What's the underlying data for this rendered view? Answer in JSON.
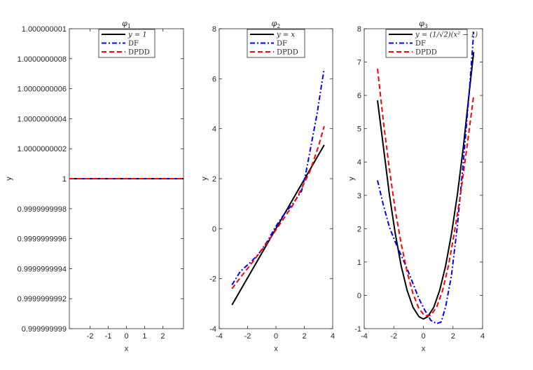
{
  "chart_data": [
    {
      "type": "line",
      "title": "φ",
      "title_sub": "1",
      "xlabel": "x",
      "ylabel": "y",
      "xlim": [
        -3.1416,
        3.1416
      ],
      "ylim": [
        0.999999999,
        1.000000001
      ],
      "xticks": [
        -2,
        -1,
        0,
        1,
        2
      ],
      "xtick_labels": [
        "-2",
        "-1",
        "0",
        "1",
        "2"
      ],
      "yticks": [
        0.999999999,
        0.9999999992,
        0.9999999994,
        0.9999999996,
        0.9999999998,
        1,
        1.0000000002,
        1.0000000004,
        1.0000000006,
        1.0000000008,
        1.000000001
      ],
      "ytick_labels": [
        "0.999999999",
        "0.9999999992",
        "0.9999999994",
        "0.9999999996",
        "0.9999999998",
        "1",
        "1.0000000002",
        "1.0000000004",
        "1.0000000006",
        "1.0000000008",
        "1.000000001"
      ],
      "legend_position": "top",
      "grid": false,
      "series": [
        {
          "name": "y = 1",
          "color": "#000000",
          "style": "solid",
          "x": [
            -3.1416,
            3.1416
          ],
          "y": [
            1,
            1
          ]
        },
        {
          "name": "DF",
          "color": "#0000ff",
          "style": "dashdot",
          "x": [
            -3.1416,
            3.1416
          ],
          "y": [
            1,
            1
          ]
        },
        {
          "name": "DPDD",
          "color": "#ff0000",
          "style": "dashed",
          "x": [
            -3.1416,
            3.1416
          ],
          "y": [
            1,
            1
          ]
        }
      ]
    },
    {
      "type": "line",
      "title": "φ",
      "title_sub": "2",
      "xlabel": "x",
      "ylabel": "y",
      "xlim": [
        -4,
        4
      ],
      "ylim": [
        -4,
        8
      ],
      "xticks": [
        -4,
        -2,
        0,
        2,
        4
      ],
      "xtick_labels": [
        "-4",
        "-2",
        "0",
        "2",
        "4"
      ],
      "yticks": [
        -4,
        -2,
        0,
        2,
        4,
        6,
        8
      ],
      "ytick_labels": [
        "-4",
        "-2",
        "0",
        "2",
        "4",
        "6",
        "8"
      ],
      "legend_position": "top",
      "grid": false,
      "series": [
        {
          "name": "y = x",
          "color": "#000000",
          "style": "solid",
          "x": [
            -3.1,
            3.4
          ],
          "y": [
            -3.05,
            3.35
          ]
        },
        {
          "name": "DF",
          "color": "#0000ff",
          "style": "dashdot",
          "x": [
            -3.1,
            -2.5,
            -1.8,
            -1.2,
            -0.6,
            0,
            0.6,
            1.2,
            1.8,
            2.1,
            2.5,
            2.9,
            3.2,
            3.4
          ],
          "y": [
            -2.25,
            -1.7,
            -1.35,
            -1.0,
            -0.5,
            0.1,
            0.6,
            1.0,
            1.5,
            2.2,
            3.4,
            4.6,
            5.7,
            6.4
          ]
        },
        {
          "name": "DPDD",
          "color": "#ff0000",
          "style": "dashed",
          "x": [
            -3.1,
            -2.5,
            -1.8,
            -1.2,
            -0.6,
            0,
            0.6,
            1.2,
            1.8,
            2.4,
            3.0,
            3.4
          ],
          "y": [
            -2.4,
            -1.95,
            -1.45,
            -1.0,
            -0.55,
            -0.05,
            0.45,
            0.95,
            1.6,
            2.3,
            3.3,
            4.1
          ]
        }
      ]
    },
    {
      "type": "line",
      "title": "φ",
      "title_sub": "3",
      "xlabel": "x",
      "ylabel": "y",
      "xlim": [
        -4,
        4
      ],
      "ylim": [
        -1,
        8
      ],
      "xticks": [
        -4,
        -2,
        0,
        2,
        4
      ],
      "xtick_labels": [
        "-4",
        "-2",
        "0",
        "2",
        "4"
      ],
      "yticks": [
        -1,
        0,
        1,
        2,
        3,
        4,
        5,
        6,
        7,
        8
      ],
      "ytick_labels": [
        "-1",
        "0",
        "1",
        "2",
        "3",
        "4",
        "5",
        "6",
        "7",
        "8"
      ],
      "legend_position": "top",
      "grid": false,
      "series": [
        {
          "name": "y = (1/√2)(x² − 1)",
          "color": "#000000",
          "style": "solid",
          "x": [
            -3.1,
            -2.7,
            -2.3,
            -1.9,
            -1.5,
            -1.1,
            -0.7,
            -0.3,
            0,
            0.3,
            0.7,
            1.1,
            1.5,
            1.9,
            2.3,
            2.7,
            3.1,
            3.4
          ],
          "y": [
            5.85,
            4.45,
            3.03,
            1.85,
            0.88,
            0.15,
            -0.36,
            -0.64,
            -0.71,
            -0.64,
            -0.36,
            0.15,
            0.88,
            1.85,
            3.03,
            4.45,
            6.1,
            7.3
          ]
        },
        {
          "name": "DF",
          "color": "#0000ff",
          "style": "dashdot",
          "x": [
            -3.1,
            -2.7,
            -2.3,
            -1.9,
            -1.5,
            -1.1,
            -0.7,
            -0.3,
            0.1,
            0.5,
            0.9,
            1.2,
            1.5,
            1.9,
            2.3,
            2.7,
            3.1,
            3.4
          ],
          "y": [
            3.45,
            2.7,
            2.05,
            1.6,
            1.2,
            0.8,
            0.35,
            -0.1,
            -0.45,
            -0.75,
            -0.85,
            -0.8,
            -0.35,
            0.6,
            2.1,
            4.0,
            6.1,
            7.9
          ]
        },
        {
          "name": "DPDD",
          "color": "#ff0000",
          "style": "dashed",
          "x": [
            -3.1,
            -2.7,
            -2.3,
            -1.9,
            -1.5,
            -1.1,
            -0.7,
            -0.3,
            0.1,
            0.5,
            0.9,
            1.3,
            1.7,
            2.1,
            2.5,
            2.9,
            3.4
          ],
          "y": [
            6.8,
            5.2,
            3.8,
            2.55,
            1.55,
            0.7,
            0.05,
            -0.4,
            -0.62,
            -0.6,
            -0.35,
            0.15,
            0.9,
            1.9,
            3.0,
            4.3,
            6.0
          ]
        }
      ]
    }
  ]
}
